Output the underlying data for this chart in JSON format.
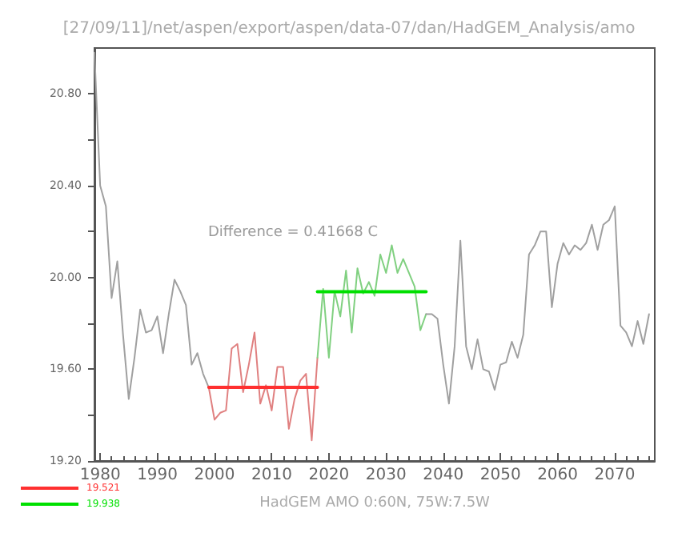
{
  "chart_data": {
    "type": "line",
    "title": "[27/09/11]/net/aspen/export/aspen/data-07/dan/HadGEM_Analysis/amo",
    "xlabel": "HadGEM AMO 0:60N, 75W:7.5W",
    "annotations": [
      "Difference = 0.41668 C"
    ],
    "xlim": [
      1979,
      2077
    ],
    "xticks": [
      1980,
      1990,
      2000,
      2010,
      2020,
      2030,
      2040,
      2050,
      2060,
      2070
    ],
    "ylim": [
      19.2,
      21.0
    ],
    "yticks": [
      {
        "value": 19.2,
        "label": "19.20"
      },
      {
        "value": 19.4,
        "label": null
      },
      {
        "value": 19.6,
        "label": "19.60"
      },
      {
        "value": 19.8,
        "label": null
      },
      {
        "value": 20.0,
        "label": "20.00"
      },
      {
        "value": 20.2,
        "label": null
      },
      {
        "value": 20.4,
        "label": "20.40"
      },
      {
        "value": 20.6,
        "label": null
      },
      {
        "value": 20.8,
        "label": "20.80"
      }
    ],
    "grid": false,
    "legend": "bottom left",
    "marker": "none",
    "line_style": "solid",
    "series": [
      {
        "color": "#a0a0a0",
        "x": [
          1979,
          1980,
          1981,
          1982,
          1983,
          1984,
          1985,
          1986,
          1987,
          1988,
          1989,
          1990,
          1991,
          1992,
          1993,
          1994,
          1995,
          1996,
          1997,
          1998,
          1999
        ],
        "values": [
          20.98,
          20.4,
          20.31,
          19.91,
          20.07,
          19.75,
          19.47,
          19.65,
          19.86,
          19.76,
          19.77,
          19.83,
          19.67,
          19.84,
          19.99,
          19.94,
          19.88,
          19.62,
          19.67,
          19.58,
          19.52
        ]
      },
      {
        "color": "#e08080",
        "x": [
          1999,
          2000,
          2001,
          2002,
          2003,
          2004,
          2005,
          2006,
          2007,
          2008,
          2009,
          2010,
          2011,
          2012,
          2013,
          2014,
          2015,
          2016,
          2017,
          2018
        ],
        "values": [
          19.52,
          19.38,
          19.41,
          19.42,
          19.69,
          19.71,
          19.5,
          19.62,
          19.76,
          19.45,
          19.53,
          19.42,
          19.61,
          19.61,
          19.34,
          19.47,
          19.55,
          19.58,
          19.29,
          19.65
        ]
      },
      {
        "color": "#80d080",
        "x": [
          2018,
          2019,
          2020,
          2021,
          2022,
          2023,
          2024,
          2025,
          2026,
          2027,
          2028,
          2029,
          2030,
          2031,
          2032,
          2033,
          2034,
          2035,
          2036,
          2037
        ],
        "values": [
          19.65,
          19.95,
          19.65,
          19.94,
          19.83,
          20.03,
          19.76,
          20.04,
          19.93,
          19.98,
          19.92,
          20.1,
          20.02,
          20.14,
          20.02,
          20.08,
          20.02,
          19.96,
          19.77,
          19.84
        ]
      },
      {
        "color": "#a0a0a0",
        "x": [
          2037,
          2038,
          2039,
          2040,
          2041,
          2042,
          2043,
          2044,
          2045,
          2046,
          2047,
          2048,
          2049,
          2050,
          2051,
          2052,
          2053,
          2054,
          2055,
          2056,
          2057,
          2058,
          2059,
          2060,
          2061,
          2062,
          2063,
          2064,
          2065,
          2066,
          2067,
          2068,
          2069,
          2070,
          2071,
          2072,
          2073,
          2074,
          2075,
          2076
        ],
        "values": [
          19.84,
          19.84,
          19.82,
          19.62,
          19.45,
          19.7,
          20.16,
          19.7,
          19.6,
          19.73,
          19.6,
          19.59,
          19.51,
          19.62,
          19.63,
          19.72,
          19.65,
          19.75,
          20.1,
          20.14,
          20.2,
          20.2,
          19.87,
          20.06,
          20.15,
          20.1,
          20.14,
          20.12,
          20.15,
          20.23,
          20.12,
          20.23,
          20.25,
          20.31,
          19.79,
          19.76,
          19.7,
          19.81,
          19.71,
          19.84
        ]
      },
      {
        "name": "19.521",
        "color": "#ff3030",
        "x": [
          1999,
          2018
        ],
        "values": [
          19.521,
          19.521
        ]
      },
      {
        "name": "19.938",
        "color": "#00e000",
        "x": [
          2018,
          2037
        ],
        "values": [
          19.938,
          19.938
        ]
      }
    ]
  }
}
